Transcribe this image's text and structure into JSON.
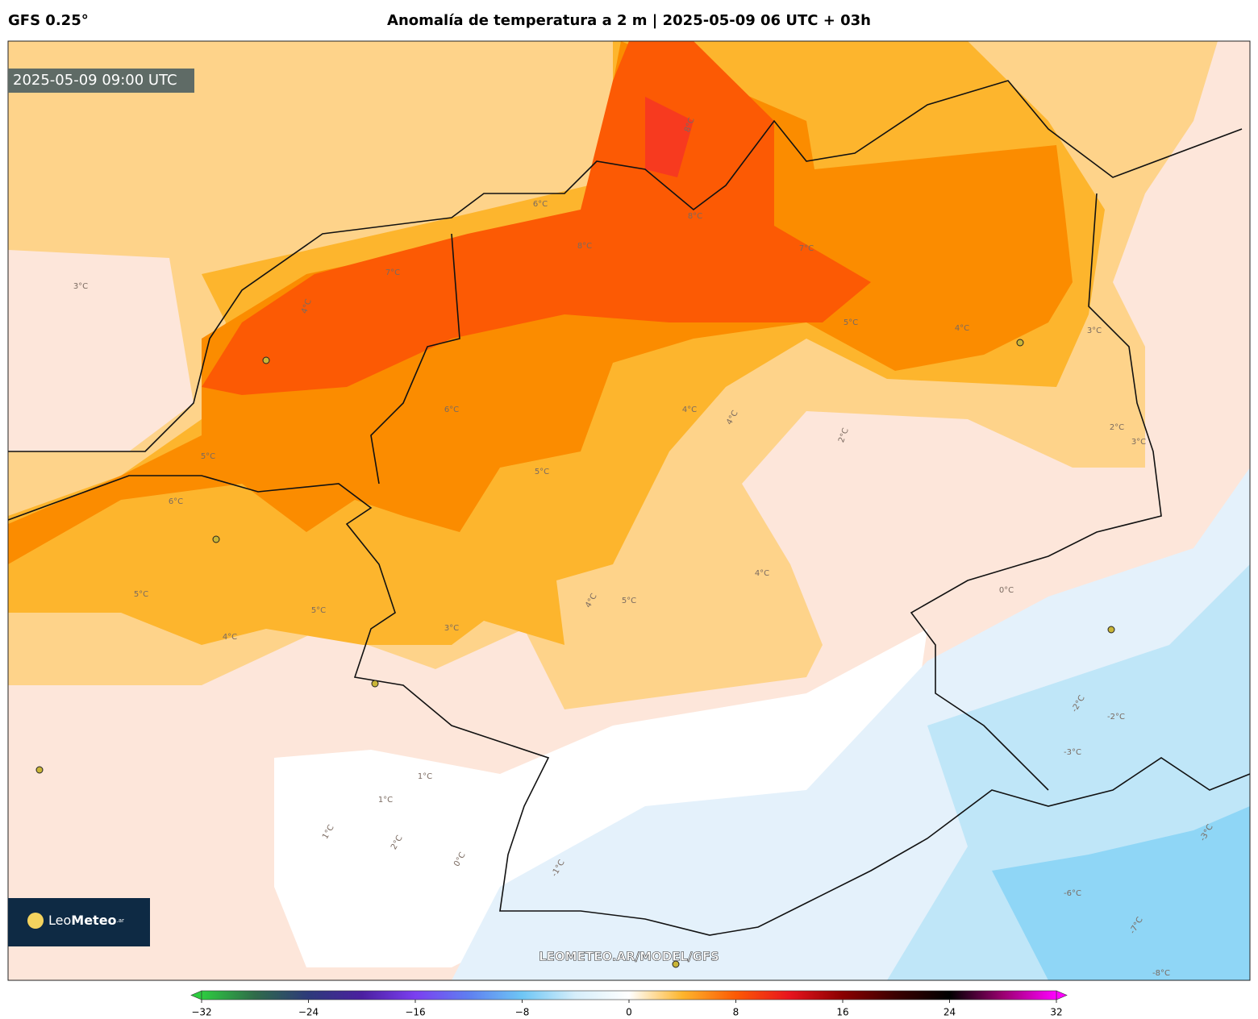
{
  "header": {
    "model": "GFS 0.25°",
    "title": "Anomalía de temperatura a 2 m | 2025-05-09 06 UTC + 03h"
  },
  "map": {
    "valid_time": "2025-05-09 09:00 UTC",
    "watermark": "LEOMETEO.AR/MODEL/GFS",
    "logo": {
      "leo": "Leo",
      "meteo": "Meteo",
      "suffix": ".ar"
    },
    "contour_labels": [
      "8°C",
      "8°C",
      "8°C",
      "7°C",
      "7°C",
      "6°C",
      "6°C",
      "6°C",
      "5°C",
      "5°C",
      "5°C",
      "5°C",
      "5°C",
      "5°C",
      "4°C",
      "4°C",
      "4°C",
      "4°C",
      "4°C",
      "4°C",
      "4°C",
      "3°C",
      "3°C",
      "3°C",
      "3°C",
      "2°C",
      "2°C",
      "2°C",
      "1°C",
      "1°C",
      "1°C",
      "0°C",
      "0°C",
      "-1°C",
      "-2°C",
      "-2°C",
      "-3°C",
      "-3°C",
      "-6°C",
      "-7°C",
      "-8°C"
    ]
  },
  "colorbar": {
    "min": -32,
    "max": 32,
    "ticks": [
      {
        "value": -32,
        "label": "−32"
      },
      {
        "value": -24,
        "label": "−24"
      },
      {
        "value": -16,
        "label": "−16"
      },
      {
        "value": -8,
        "label": "−8"
      },
      0,
      8,
      16,
      24,
      32
    ],
    "colors": [
      "#2ecc40",
      "#2f6b4a",
      "#2d3a7a",
      "#4b1fa0",
      "#7b3ff0",
      "#5f7ff0",
      "#6ec6f5",
      "#d6eefa",
      "#ffffff",
      "#fdb52d",
      "#fc5a04",
      "#e8141e",
      "#8a0000",
      "#3a0000",
      "#000000",
      "#9a0070",
      "#ff00ff"
    ]
  }
}
